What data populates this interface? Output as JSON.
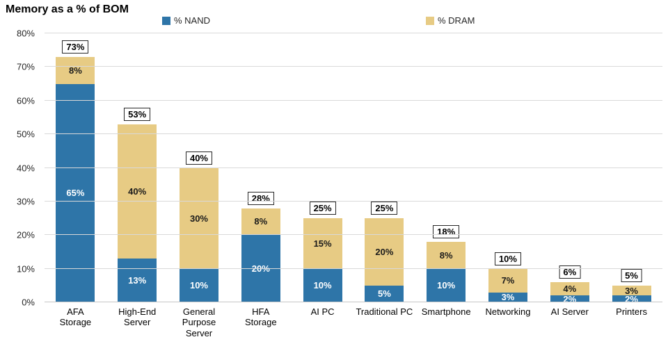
{
  "title": "Memory as a % of BOM",
  "legend": [
    {
      "label": "% NAND",
      "color": "#2e75a8"
    },
    {
      "label": "% DRAM",
      "color": "#e7cb84"
    }
  ],
  "chart_data": {
    "type": "bar",
    "stacked": true,
    "title": "Memory as a % of BOM",
    "xlabel": "",
    "ylabel": "",
    "ylim": [
      0,
      80
    ],
    "grid": true,
    "legend_position": "top",
    "yticks": [
      "0%",
      "10%",
      "20%",
      "30%",
      "40%",
      "50%",
      "60%",
      "70%",
      "80%"
    ],
    "categories": [
      "AFA Storage",
      "High-End Server",
      "General Purpose Server",
      "HFA Storage",
      "AI PC",
      "Traditional PC",
      "Smartphone",
      "Networking",
      "AI Server",
      "Printers"
    ],
    "category_tick_labels": [
      "AFA\nStorage",
      "High-End\nServer",
      "General\nPurpose\nServer",
      "HFA\nStorage",
      "AI PC",
      "Traditional PC",
      "Smartphone",
      "Networking",
      "AI Server",
      "Printers"
    ],
    "series": [
      {
        "name": "% NAND",
        "color": "#2e75a8",
        "values": [
          65,
          13,
          10,
          20,
          10,
          5,
          10,
          3,
          2,
          2
        ]
      },
      {
        "name": "% DRAM",
        "color": "#e7cb84",
        "values": [
          8,
          40,
          30,
          8,
          15,
          20,
          8,
          7,
          4,
          3
        ]
      }
    ],
    "totals": [
      73,
      53,
      40,
      28,
      25,
      25,
      18,
      10,
      6,
      5
    ]
  }
}
